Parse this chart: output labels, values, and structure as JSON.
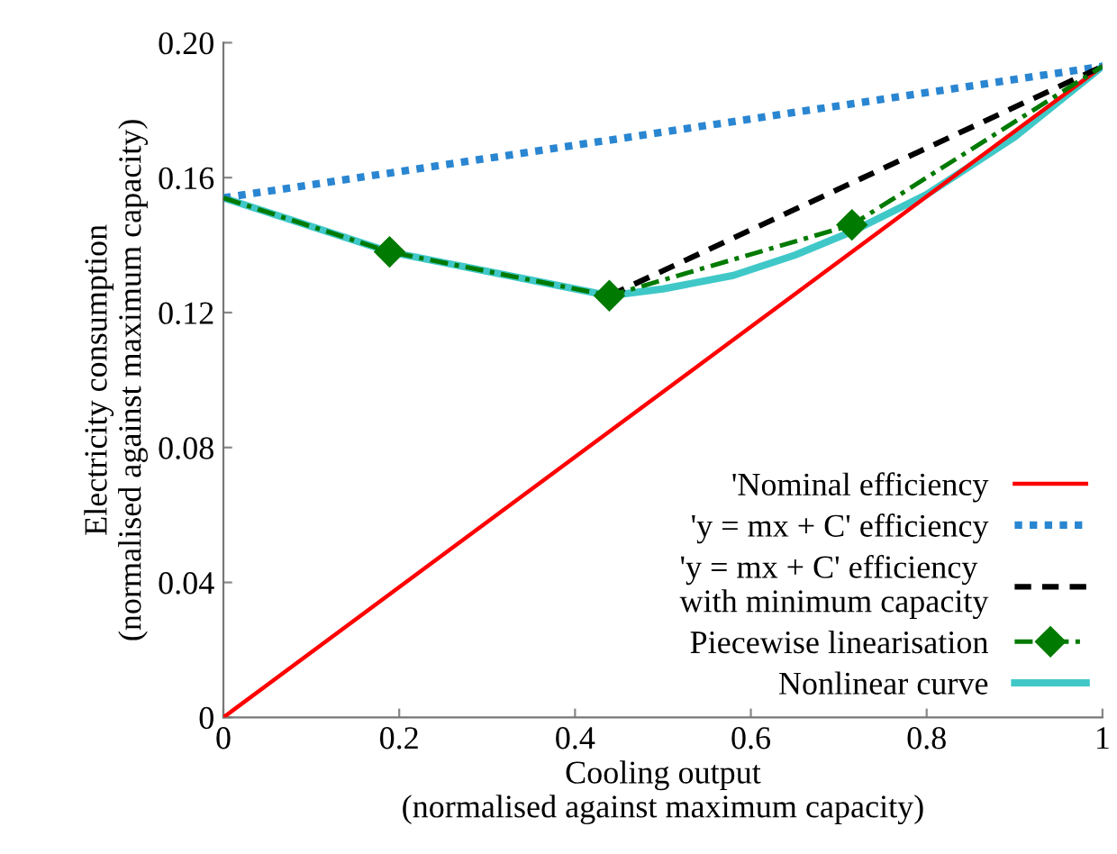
{
  "chart_data": {
    "type": "line",
    "xlabel": "Cooling output\n(normalised against maximum capacity)",
    "ylabel": "Electricity consumption\n(normalised against maximum capacity)",
    "xlim": [
      0,
      1
    ],
    "ylim": [
      0,
      0.2
    ],
    "xticks": [
      0,
      {
        "value": 0.2,
        "label": "0.2"
      },
      {
        "value": 0.4,
        "label": "0.4"
      },
      {
        "value": 0.6,
        "label": "0.6"
      },
      {
        "value": 0.8,
        "label": "0.8"
      },
      1
    ],
    "yticks": [
      0,
      {
        "value": 0.04,
        "label": "0.04"
      },
      {
        "value": 0.08,
        "label": "0.08"
      },
      {
        "value": 0.12,
        "label": "0.12"
      },
      {
        "value": 0.16,
        "label": "0.16"
      },
      {
        "value": 0.2,
        "label": "0.20"
      }
    ],
    "grid": false,
    "legend": "bottom right",
    "series": [
      {
        "name": "'Nominal efficiency",
        "color": "#ff0000",
        "line_style": "solid",
        "marker": "none",
        "x": [
          0,
          1
        ],
        "values": [
          0,
          0.193
        ]
      },
      {
        "name": "'y = mx + C' efficiency",
        "color": "#2a86d1",
        "line_style": "dotted",
        "marker": "none",
        "x": [
          0,
          1
        ],
        "values": [
          0.154,
          0.193
        ]
      },
      {
        "name": "'y = mx + C' efficiency\nwith minimum capacity",
        "color": "#000000",
        "line_style": "dashed",
        "marker": "none",
        "x": [
          0.439,
          1
        ],
        "values": [
          0.125,
          0.193
        ]
      },
      {
        "name": "Piecewise linearisation",
        "color": "#007a00",
        "line_style": "dashdot",
        "marker": "diamond",
        "x": [
          0,
          0.189,
          0.439,
          0.715,
          1
        ],
        "values": [
          0.154,
          0.138,
          0.125,
          0.146,
          0.193
        ]
      },
      {
        "name": "Nonlinear curve",
        "color": "#40c8c8",
        "line_style": "solid",
        "marker": "none",
        "x": [
          0,
          0.189,
          0.439,
          0.5,
          0.58,
          0.65,
          0.715,
          0.8,
          0.9,
          1
        ],
        "values": [
          0.154,
          0.138,
          0.125,
          0.127,
          0.131,
          0.137,
          0.144,
          0.155,
          0.172,
          0.193
        ]
      }
    ]
  }
}
